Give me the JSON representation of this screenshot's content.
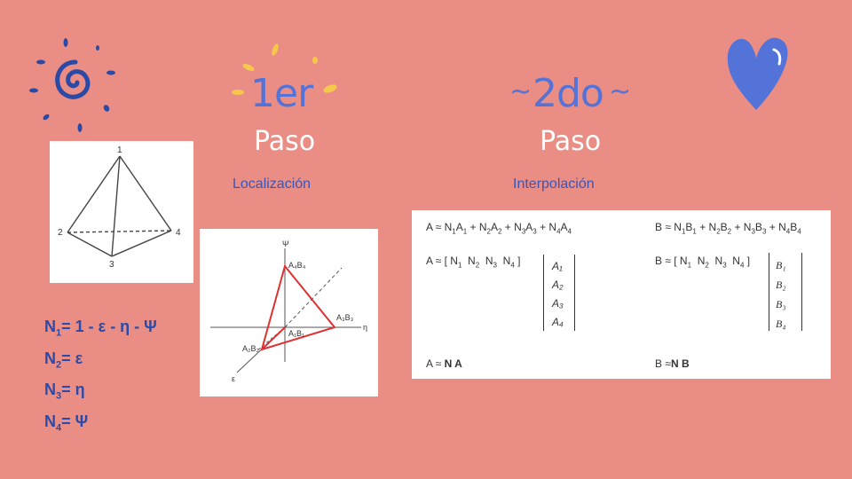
{
  "step1": {
    "number": "1er",
    "word": "Paso",
    "subtitle": "Localización"
  },
  "step2": {
    "number": "2do",
    "word": "Paso",
    "subtitle": "Interpolación"
  },
  "tetra_labels": {
    "v1": "1",
    "v2": "2",
    "v3": "3",
    "v4": "4"
  },
  "axes_labels": {
    "psi": "Ψ",
    "eta": "η",
    "eps": "ε",
    "p4": "A₄B₄",
    "p3": "A₃B₃",
    "p2": "A₂B₂",
    "p1": "A₁B₁"
  },
  "shape_functions": [
    {
      "n": "1",
      "expr": "= 1 - ε - η - Ψ"
    },
    {
      "n": "2",
      "expr": "= ε"
    },
    {
      "n": "3",
      "expr": "= η"
    },
    {
      "n": "4",
      "expr": "= Ψ"
    }
  ],
  "interp": {
    "a_lhs": "A ≈ ",
    "b_lhs": "B ≈ ",
    "a_vec_lhs": "A ≈ [",
    "b_vec_lhs": "B ≈ [",
    "a_vec": [
      "A₁",
      "A₂",
      "A₃",
      "A₄"
    ],
    "b_vec": [
      "B₁",
      "B₂",
      "B₃",
      "B₄"
    ],
    "a_final_lhs": "A ≈ ",
    "a_final_rhs": "N A",
    "b_final_lhs": "B ≈",
    "b_final_rhs": "N B"
  },
  "colors": {
    "background": "#e98d85",
    "accent_blue": "#5473d9",
    "yellow": "#f5c84c",
    "red": "#e03030"
  }
}
